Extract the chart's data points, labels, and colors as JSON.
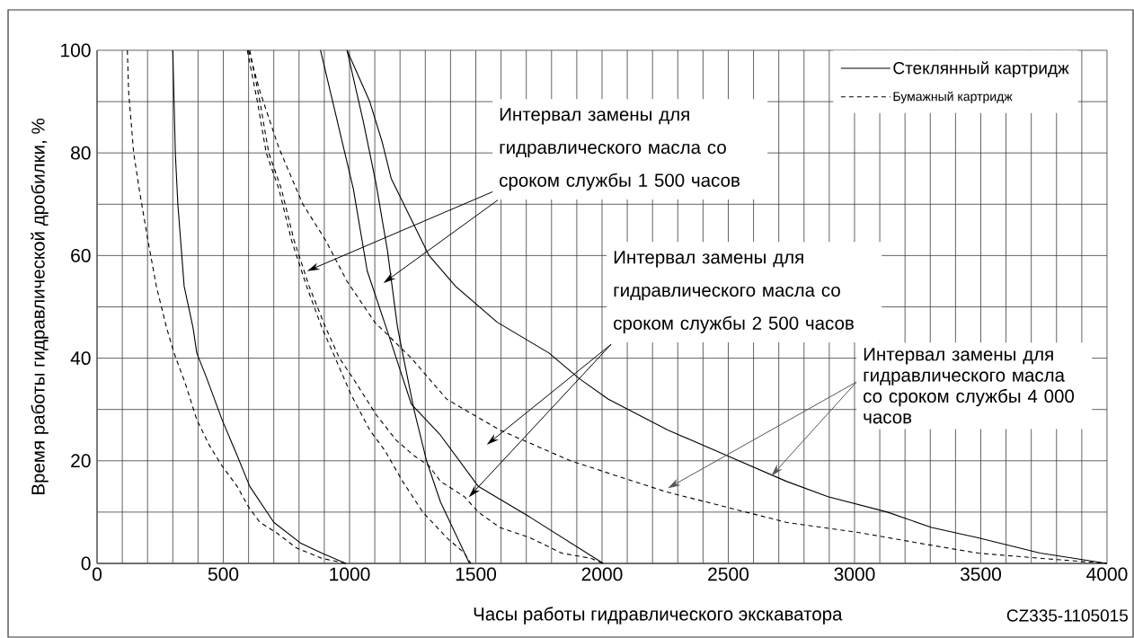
{
  "chart_data": {
    "type": "line",
    "xlabel": "Часы работы гидравлического экскаватора",
    "ylabel": "Время работы гидравлической дробилки, %",
    "xlim": [
      0,
      4000
    ],
    "ylim": [
      0,
      100
    ],
    "xticks": [
      0,
      {
        "value": 100,
        "label": null
      },
      {
        "value": 200,
        "label": null
      },
      {
        "value": 300,
        "label": null
      },
      {
        "value": 400,
        "label": null
      },
      500,
      {
        "value": 600,
        "label": null
      },
      {
        "value": 700,
        "label": null
      },
      {
        "value": 800,
        "label": null
      },
      {
        "value": 900,
        "label": null
      },
      1000,
      {
        "value": 1100,
        "label": null
      },
      {
        "value": 1200,
        "label": null
      },
      {
        "value": 1300,
        "label": null
      },
      {
        "value": 1400,
        "label": null
      },
      1500,
      {
        "value": 1600,
        "label": null
      },
      {
        "value": 1700,
        "label": null
      },
      {
        "value": 1800,
        "label": null
      },
      {
        "value": 1900,
        "label": null
      },
      2000,
      {
        "value": 2100,
        "label": null
      },
      {
        "value": 2200,
        "label": null
      },
      {
        "value": 2300,
        "label": null
      },
      {
        "value": 2400,
        "label": null
      },
      2500,
      {
        "value": 2600,
        "label": null
      },
      {
        "value": 2700,
        "label": null
      },
      {
        "value": 2800,
        "label": null
      },
      {
        "value": 2900,
        "label": null
      },
      3000,
      {
        "value": 3100,
        "label": null
      },
      {
        "value": 3200,
        "label": null
      },
      {
        "value": 3300,
        "label": null
      },
      {
        "value": 3400,
        "label": null
      },
      3500,
      {
        "value": 3600,
        "label": null
      },
      {
        "value": 3700,
        "label": null
      },
      {
        "value": 3800,
        "label": null
      },
      {
        "value": 3900,
        "label": null
      },
      4000
    ],
    "yticks": [
      0,
      {
        "value": 10,
        "label": null
      },
      20,
      {
        "value": 30,
        "label": null
      },
      40,
      {
        "value": 50,
        "label": null
      },
      60,
      {
        "value": 70,
        "label": null
      },
      80,
      {
        "value": 90,
        "label": null
      },
      100
    ],
    "grid": true,
    "legend": "top right",
    "annotations": [
      "Интервал замены для гидравлического масла со сроком службы 1 500 часов",
      "Интервал замены для гидравлического масла со сроком службы 2 500 часов",
      {
        "text": "Интервал замены для гидравлического масла со сроком службы 4 000 часов",
        "x": 2670,
        "y": 17
      },
      "CZ335-1105015"
    ],
    "series": [
      {
        "name": "Стеклянный картридж",
        "color": "#000000",
        "line_style": "solid",
        "x": [
          300,
          305,
          310,
          320,
          345,
          380,
          395,
          435,
          495,
          555,
          605,
          700,
          805,
          890,
          985
        ],
        "values": [
          100,
          90,
          80,
          70,
          54,
          46,
          41,
          36,
          28,
          21,
          15,
          8,
          4,
          2,
          0
        ]
      },
      {
        "color": "#000000",
        "line_style": "solid",
        "x": [
          990,
          1055,
          1105,
          1150,
          1190,
          1210,
          1255,
          1305,
          1360,
          1475
        ],
        "values": [
          100,
          86,
          74,
          61,
          46,
          41,
          30,
          20,
          12,
          0
        ]
      },
      {
        "color": "#000000",
        "line_style": "solid",
        "x": [
          885,
          1015,
          1070,
          1145,
          1185,
          1245,
          1360,
          1510,
          1715,
          2005
        ],
        "values": [
          100,
          73,
          57,
          46,
          40,
          31,
          25,
          15,
          9,
          0
        ]
      },
      {
        "color": "#000000",
        "line_style": "solid",
        "x": [
          990,
          1080,
          1130,
          1165,
          1205,
          1245,
          1315,
          1420,
          1585,
          1790,
          1910,
          2025,
          2260,
          2495,
          2730,
          2895,
          3130,
          3305,
          3490,
          3735,
          4000
        ],
        "values": [
          100,
          90,
          82,
          75,
          71,
          67,
          60,
          54,
          47,
          41,
          36,
          32,
          26,
          21,
          16,
          13,
          10,
          7,
          5,
          2,
          0
        ]
      },
      {
        "name": "Бумажный картридж",
        "color": "#000000",
        "line_style": "dashed",
        "x": [
          120,
          125,
          140,
          145,
          170,
          205,
          235,
          275,
          305,
          350,
          395,
          445,
          495,
          555,
          600,
          645,
          710,
          790,
          890,
          985
        ],
        "values": [
          100,
          92,
          83,
          80,
          72,
          62,
          54,
          46,
          41,
          35,
          28,
          23,
          19,
          15,
          11,
          8,
          6,
          3,
          1,
          0
        ]
      },
      {
        "color": "#000000",
        "line_style": "dashed",
        "x": [
          595,
          635,
          670,
          720,
          770,
          830,
          890,
          935,
          1005,
          1080,
          1140,
          1210,
          1290,
          1385,
          1455,
          1480
        ],
        "values": [
          100,
          90,
          80,
          73,
          63,
          54,
          46,
          41,
          33,
          26,
          22,
          16,
          10,
          5,
          2,
          0
        ]
      },
      {
        "color": "#000000",
        "line_style": "dashed",
        "x": [
          605,
          645,
          680,
          730,
          780,
          840,
          905,
          960,
          1015,
          1105,
          1185,
          1255,
          1315,
          1360,
          1455,
          1510,
          1595,
          1715,
          1840,
          1955,
          2005
        ],
        "values": [
          100,
          90,
          80,
          73,
          63,
          54,
          46,
          40,
          36,
          29,
          24,
          21,
          19,
          16,
          13,
          10,
          7,
          5,
          2,
          1,
          0
        ]
      },
      {
        "color": "#000000",
        "line_style": "dashed",
        "x": [
          600,
          645,
          720,
          815,
          905,
          990,
          1100,
          1245,
          1315,
          1385,
          1595,
          1875,
          2250,
          2730,
          3020,
          3250,
          3490,
          3735,
          4000
        ],
        "values": [
          100,
          92,
          81,
          70,
          63,
          55,
          47,
          40,
          36,
          32,
          26,
          20,
          14,
          8,
          6,
          4,
          2,
          1,
          0
        ]
      }
    ]
  }
}
